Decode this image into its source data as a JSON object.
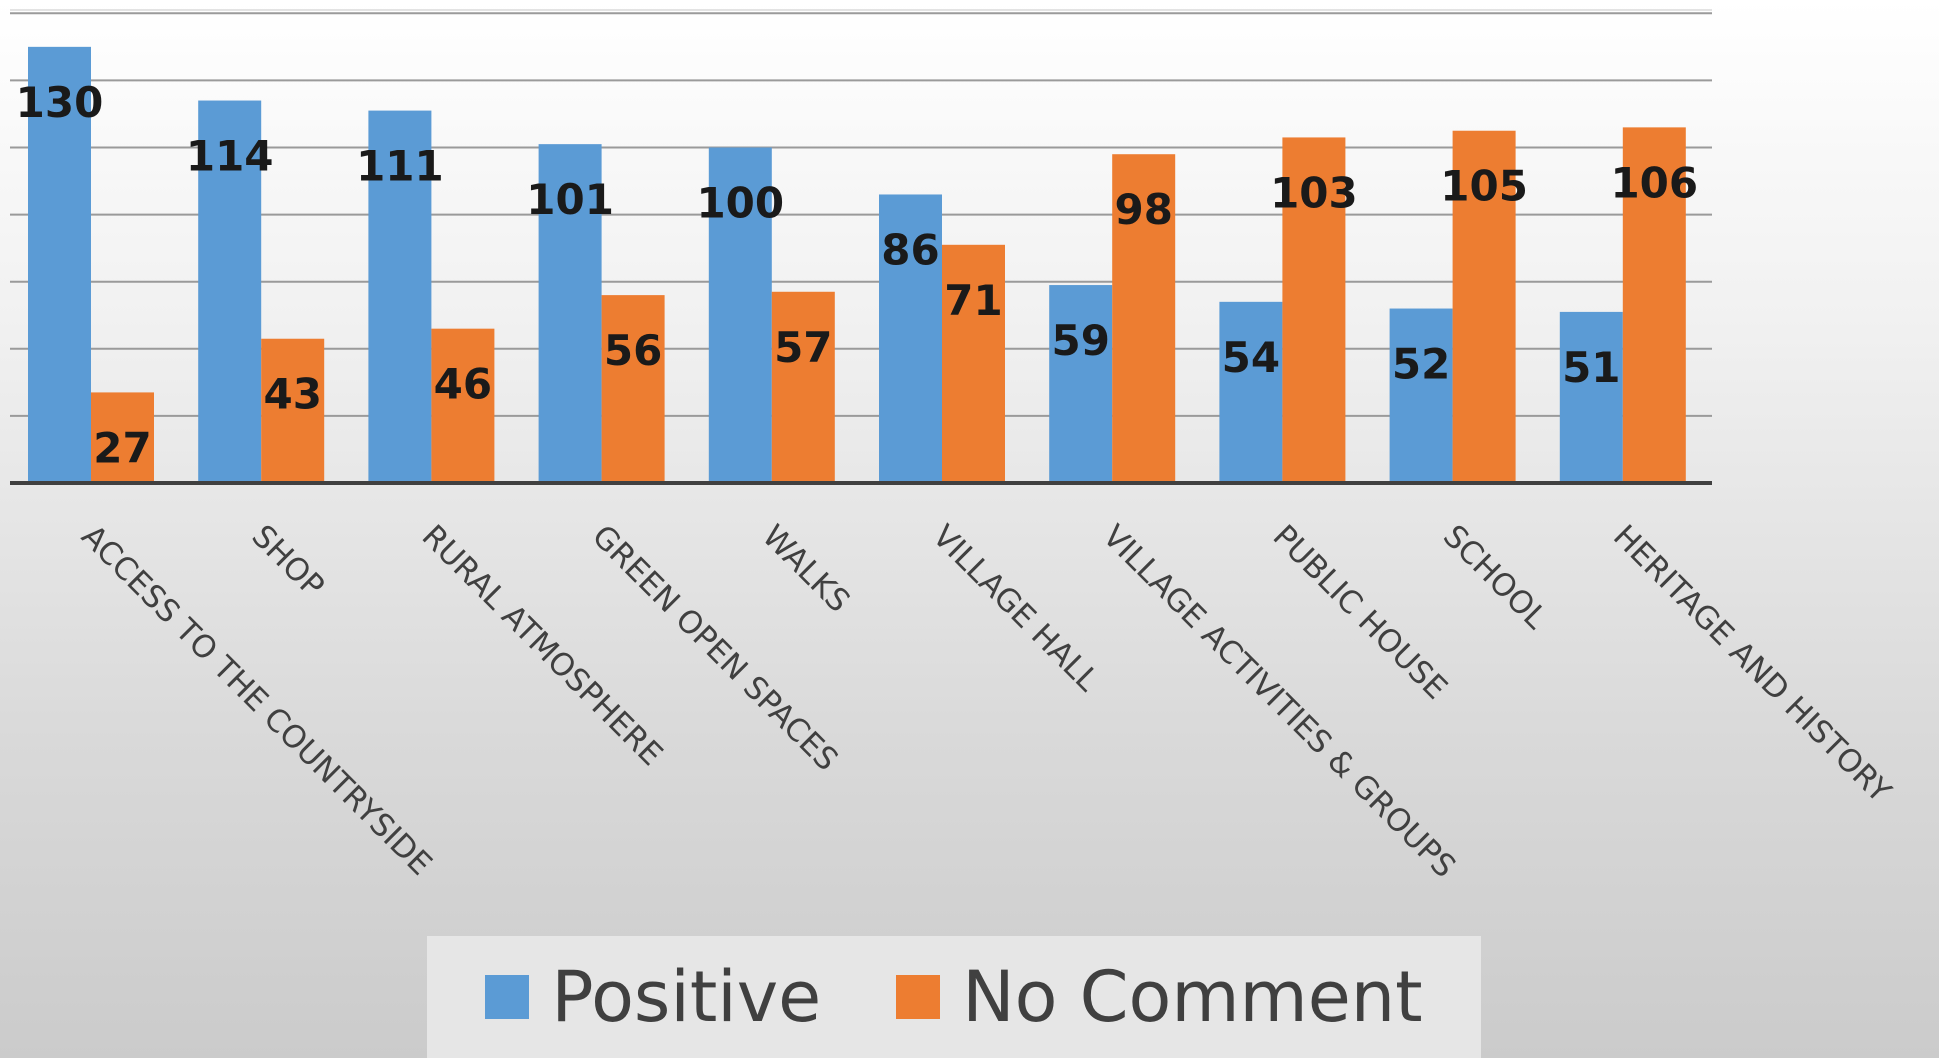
{
  "chart_data": {
    "type": "bar",
    "categories": [
      "ACCESS TO THE COUNTRYSIDE",
      "SHOP",
      "RURAL ATMOSPHERE",
      "GREEN OPEN SPACES",
      "WALKS",
      "VILLAGE HALL",
      "VILLAGE ACTIVITIES & GROUPS",
      "PUBLIC HOUSE",
      "SCHOOL",
      "HERITAGE AND HISTORY"
    ],
    "series": [
      {
        "name": "Positive",
        "color": "#5b9bd5",
        "values": [
          130,
          114,
          111,
          101,
          100,
          86,
          59,
          54,
          52,
          51
        ]
      },
      {
        "name": "No Comment",
        "color": "#ed7d31",
        "values": [
          27,
          43,
          46,
          56,
          57,
          71,
          98,
          103,
          105,
          106
        ]
      }
    ],
    "ylim": [
      0,
      140
    ],
    "grid": true,
    "legend_position": "bottom",
    "data_labels": true
  }
}
